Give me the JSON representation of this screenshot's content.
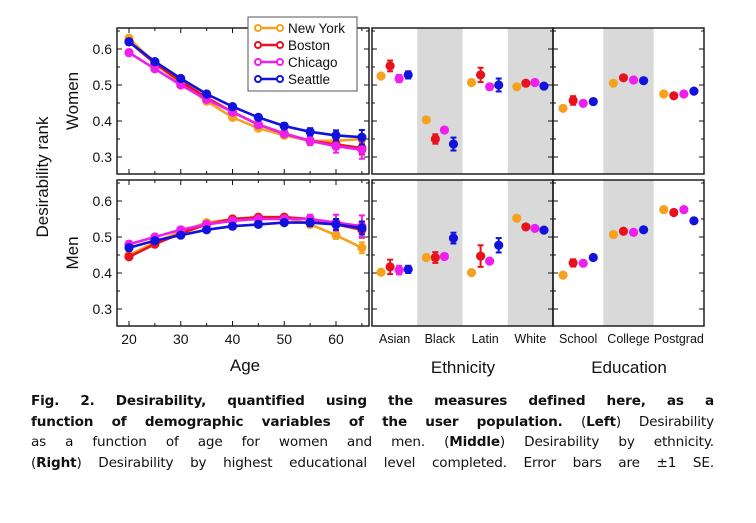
{
  "figure": {
    "ylabel": "Desirability rank",
    "rows": [
      "Women",
      "Men"
    ],
    "legend": [
      "New York",
      "Boston",
      "Chicago",
      "Seattle"
    ],
    "colors": {
      "New York": "#f5a21e",
      "Boston": "#e8121c",
      "Chicago": "#ee1fee",
      "Seattle": "#1212dd"
    },
    "shade_color": "#d9d9d9"
  },
  "caption": {
    "fig_label": "Fig. 2.",
    "bold_title": "Desirability, quantified using the measures defined here, as a function of demographic variables of the user population.",
    "left_tag": "Left",
    "left_text": "Desirability as a function of age for women and men.",
    "middle_tag": "Middle",
    "middle_text": "Desirability by ethnicity.",
    "right_tag": "Right",
    "right_text": "Desirability by highest educational level completed. Error bars are ±1 SE.",
    "lines": [
      {
        "parts": [
          {
            "b": true,
            "t": "Fig. 2. Desirability, quantified using the measures defined here, as a"
          }
        ]
      },
      {
        "parts": [
          {
            "b": true,
            "t": "function of demographic variables of the user population. "
          },
          {
            "b": false,
            "t": "("
          },
          {
            "b": true,
            "t": "Left"
          },
          {
            "b": false,
            "t": ") Desirability"
          }
        ]
      },
      {
        "parts": [
          {
            "b": false,
            "t": "as a function of age for women and men. ("
          },
          {
            "b": true,
            "t": "Middle"
          },
          {
            "b": false,
            "t": ") Desirability by ethnicity."
          }
        ]
      },
      {
        "parts": [
          {
            "b": false,
            "t": "("
          },
          {
            "b": true,
            "t": "Right"
          },
          {
            "b": false,
            "t": ") Desirability by highest educational level completed. Error bars are ±1 SE."
          }
        ]
      }
    ]
  },
  "chart_data": [
    {
      "type": "line",
      "title": "Women",
      "panel": "age",
      "xlabel": "Age",
      "ylabel": "Desirability rank",
      "x": [
        20,
        25,
        30,
        35,
        40,
        45,
        50,
        55,
        60,
        65
      ],
      "xticks": [
        20,
        30,
        40,
        50,
        60
      ],
      "yticks": [
        0.3,
        0.4,
        0.5,
        0.6
      ],
      "ylim": [
        0.25,
        0.66
      ],
      "xlim": [
        18,
        66.5
      ],
      "series": [
        {
          "name": "New York",
          "values": [
            0.63,
            0.56,
            0.505,
            0.455,
            0.41,
            0.38,
            0.36,
            0.345,
            0.345,
            0.35
          ],
          "se": [
            0.008,
            0.005,
            0.004,
            0.004,
            0.004,
            0.005,
            0.006,
            0.008,
            0.01,
            0.012
          ]
        },
        {
          "name": "Boston",
          "values": [
            0.62,
            0.56,
            0.51,
            0.465,
            0.425,
            0.39,
            0.365,
            0.345,
            0.335,
            0.325
          ],
          "se": [
            0.008,
            0.005,
            0.004,
            0.004,
            0.005,
            0.006,
            0.007,
            0.01,
            0.014,
            0.018
          ]
        },
        {
          "name": "Chicago",
          "values": [
            0.59,
            0.545,
            0.5,
            0.46,
            0.425,
            0.39,
            0.365,
            0.345,
            0.33,
            0.32
          ],
          "se": [
            0.008,
            0.005,
            0.004,
            0.004,
            0.005,
            0.006,
            0.008,
            0.012,
            0.018,
            0.025
          ]
        },
        {
          "name": "Seattle",
          "values": [
            0.62,
            0.565,
            0.518,
            0.475,
            0.44,
            0.41,
            0.386,
            0.37,
            0.36,
            0.355
          ],
          "se": [
            0.008,
            0.005,
            0.004,
            0.004,
            0.005,
            0.006,
            0.008,
            0.01,
            0.014,
            0.02
          ]
        }
      ]
    },
    {
      "type": "line",
      "title": "Men",
      "panel": "age",
      "xlabel": "Age",
      "ylabel": "Desirability rank",
      "x": [
        20,
        25,
        30,
        35,
        40,
        45,
        50,
        55,
        60,
        65
      ],
      "xticks": [
        20,
        30,
        40,
        50,
        60
      ],
      "yticks": [
        0.3,
        0.4,
        0.5,
        0.6
      ],
      "ylim": [
        0.25,
        0.66
      ],
      "xlim": [
        18,
        66.5
      ],
      "series": [
        {
          "name": "New York",
          "values": [
            0.45,
            0.485,
            0.515,
            0.54,
            0.55,
            0.555,
            0.555,
            0.535,
            0.505,
            0.47
          ],
          "se": [
            0.006,
            0.004,
            0.004,
            0.004,
            0.004,
            0.005,
            0.006,
            0.008,
            0.01,
            0.015
          ]
        },
        {
          "name": "Boston",
          "values": [
            0.445,
            0.48,
            0.51,
            0.535,
            0.55,
            0.555,
            0.555,
            0.55,
            0.535,
            0.52
          ],
          "se": [
            0.006,
            0.005,
            0.004,
            0.004,
            0.004,
            0.005,
            0.007,
            0.01,
            0.015,
            0.022
          ]
        },
        {
          "name": "Chicago",
          "values": [
            0.48,
            0.5,
            0.52,
            0.535,
            0.545,
            0.55,
            0.55,
            0.55,
            0.54,
            0.53
          ],
          "se": [
            0.008,
            0.005,
            0.004,
            0.004,
            0.005,
            0.006,
            0.008,
            0.012,
            0.022,
            0.03
          ]
        },
        {
          "name": "Seattle",
          "values": [
            0.47,
            0.49,
            0.505,
            0.52,
            0.53,
            0.535,
            0.54,
            0.54,
            0.535,
            0.525
          ],
          "se": [
            0.008,
            0.005,
            0.004,
            0.004,
            0.004,
            0.005,
            0.007,
            0.01,
            0.015,
            0.018
          ]
        }
      ]
    },
    {
      "type": "scatter",
      "title": "Women",
      "panel": "ethnicity",
      "xlabel": "Ethnicity",
      "categories": [
        "Asian",
        "Black",
        "Latin",
        "White"
      ],
      "shaded": [
        false,
        true,
        false,
        true
      ],
      "ylim": [
        0.25,
        0.66
      ],
      "series": [
        {
          "name": "New York",
          "values": [
            0.525,
            0.403,
            0.507,
            0.495
          ],
          "se": [
            0.004,
            0.004,
            0.004,
            0.002
          ]
        },
        {
          "name": "Boston",
          "values": [
            0.553,
            0.35,
            0.528,
            0.505
          ],
          "se": [
            0.015,
            0.013,
            0.02,
            0.003
          ]
        },
        {
          "name": "Chicago",
          "values": [
            0.518,
            0.375,
            0.495,
            0.507
          ],
          "se": [
            0.01,
            0.005,
            0.008,
            0.002
          ]
        },
        {
          "name": "Seattle",
          "values": [
            0.528,
            0.336,
            0.5,
            0.497
          ],
          "se": [
            0.01,
            0.018,
            0.018,
            0.003
          ]
        }
      ]
    },
    {
      "type": "scatter",
      "title": "Men",
      "panel": "ethnicity",
      "xlabel": "Ethnicity",
      "categories": [
        "Asian",
        "Black",
        "Latin",
        "White"
      ],
      "shaded": [
        false,
        true,
        false,
        true
      ],
      "ylim": [
        0.25,
        0.66
      ],
      "series": [
        {
          "name": "New York",
          "values": [
            0.402,
            0.443,
            0.401,
            0.552
          ],
          "se": [
            0.004,
            0.004,
            0.004,
            0.003
          ]
        },
        {
          "name": "Boston",
          "values": [
            0.417,
            0.443,
            0.447,
            0.528
          ],
          "se": [
            0.02,
            0.015,
            0.03,
            0.003
          ]
        },
        {
          "name": "Chicago",
          "values": [
            0.408,
            0.446,
            0.433,
            0.524
          ],
          "se": [
            0.012,
            0.006,
            0.006,
            0.002
          ]
        },
        {
          "name": "Seattle",
          "values": [
            0.41,
            0.497,
            0.477,
            0.519
          ],
          "se": [
            0.01,
            0.015,
            0.02,
            0.003
          ]
        }
      ]
    },
    {
      "type": "scatter",
      "title": "Women",
      "panel": "education",
      "xlabel": "Education",
      "categories": [
        "School",
        "College",
        "Postgrad"
      ],
      "shaded": [
        false,
        true,
        false
      ],
      "ylim": [
        0.25,
        0.66
      ],
      "series": [
        {
          "name": "New York",
          "values": [
            0.435,
            0.505,
            0.475
          ],
          "se": [
            0.006,
            0.003,
            0.003
          ]
        },
        {
          "name": "Boston",
          "values": [
            0.457,
            0.52,
            0.47
          ],
          "se": [
            0.012,
            0.004,
            0.004
          ]
        },
        {
          "name": "Chicago",
          "values": [
            0.449,
            0.514,
            0.475
          ],
          "se": [
            0.004,
            0.003,
            0.003
          ]
        },
        {
          "name": "Seattle",
          "values": [
            0.454,
            0.512,
            0.483
          ],
          "se": [
            0.007,
            0.003,
            0.004
          ]
        }
      ]
    },
    {
      "type": "scatter",
      "title": "Men",
      "panel": "education",
      "xlabel": "Education",
      "categories": [
        "School",
        "College",
        "Postgrad"
      ],
      "shaded": [
        false,
        true,
        false
      ],
      "ylim": [
        0.25,
        0.66
      ],
      "series": [
        {
          "name": "New York",
          "values": [
            0.394,
            0.507,
            0.576
          ],
          "se": [
            0.004,
            0.003,
            0.003
          ]
        },
        {
          "name": "Boston",
          "values": [
            0.428,
            0.516,
            0.568
          ],
          "se": [
            0.01,
            0.004,
            0.006
          ]
        },
        {
          "name": "Chicago",
          "values": [
            0.427,
            0.513,
            0.576
          ],
          "se": [
            0.004,
            0.003,
            0.003
          ]
        },
        {
          "name": "Seattle",
          "values": [
            0.443,
            0.52,
            0.545
          ],
          "se": [
            0.005,
            0.003,
            0.005
          ]
        }
      ]
    }
  ]
}
